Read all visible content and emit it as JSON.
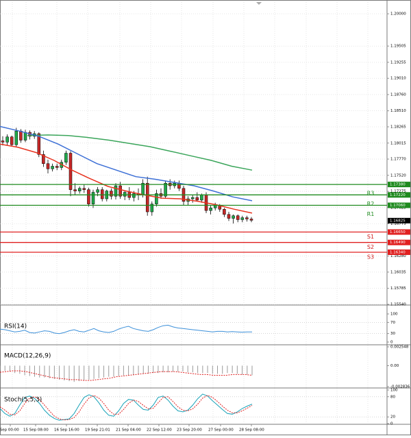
{
  "chart_data": [
    {
      "type": "candlestick",
      "price_axis": {
        "ticks": [
          "1.20000",
          "1.19505",
          "1.19255",
          "1.19010",
          "1.18760",
          "1.18510",
          "1.18265",
          "1.18015",
          "1.17770",
          "1.17520",
          "1.17275",
          "1.17025",
          "1.16775",
          "1.16280",
          "1.16035",
          "1.15785",
          "1.15540"
        ],
        "ylim": [
          1.1554,
          1.2018
        ]
      },
      "time_axis": {
        "labels": [
          "14 Sep 00:00",
          "15 Sep 08:00",
          "16 Sep 16:00",
          "19 Sep 21:01",
          "21 Sep 04:00",
          "22 Sep 12:00",
          "23 Sep 20:00",
          "27 Sep 00:00",
          "28 Sep 08:00"
        ]
      },
      "levels": [
        {
          "name": "R3",
          "value": 1.1738,
          "value_label": "1.17380",
          "color": "#1e8a1e"
        },
        {
          "name": "R2",
          "value": 1.1722,
          "value_label": "1.17220",
          "color": "#1e8a1e"
        },
        {
          "name": "R1",
          "value": 1.1706,
          "value_label": "1.17060",
          "color": "#1e8a1e"
        },
        {
          "name": "S1",
          "value": 1.1665,
          "value_label": "1.16650",
          "color": "#e02020"
        },
        {
          "name": "S2",
          "value": 1.1649,
          "value_label": "1.16490",
          "color": "#e02020"
        },
        {
          "name": "S3",
          "value": 1.1634,
          "value_label": "1.16340",
          "color": "#e02020"
        }
      ],
      "current_price": {
        "value": 1.16825,
        "label": "1.16825"
      },
      "candles": [
        [
          1.1805,
          1.1812,
          1.1798,
          1.1803
        ],
        [
          1.1803,
          1.1815,
          1.1798,
          1.1811
        ],
        [
          1.1811,
          1.1813,
          1.1796,
          1.1799
        ],
        [
          1.1799,
          1.1825,
          1.1796,
          1.182
        ],
        [
          1.182,
          1.1823,
          1.1802,
          1.1806
        ],
        [
          1.1806,
          1.1822,
          1.1803,
          1.1818
        ],
        [
          1.1818,
          1.1821,
          1.1807,
          1.1812
        ],
        [
          1.1812,
          1.182,
          1.1808,
          1.1816
        ],
        [
          1.1816,
          1.1818,
          1.178,
          1.1784
        ],
        [
          1.1784,
          1.179,
          1.1765,
          1.177
        ],
        [
          1.177,
          1.1776,
          1.1755,
          1.1762
        ],
        [
          1.1762,
          1.177,
          1.1758,
          1.1766
        ],
        [
          1.1766,
          1.177,
          1.176,
          1.1764
        ],
        [
          1.1764,
          1.1776,
          1.176,
          1.1772
        ],
        [
          1.1772,
          1.179,
          1.1768,
          1.1786
        ],
        [
          1.1786,
          1.1789,
          1.172,
          1.173
        ],
        [
          1.173,
          1.174,
          1.1722,
          1.1728
        ],
        [
          1.1728,
          1.1735,
          1.1724,
          1.1732
        ],
        [
          1.1732,
          1.1738,
          1.1725,
          1.173
        ],
        [
          1.173,
          1.1733,
          1.1704,
          1.1708
        ],
        [
          1.1708,
          1.173,
          1.1702,
          1.1726
        ],
        [
          1.1726,
          1.1734,
          1.172,
          1.173
        ],
        [
          1.173,
          1.1734,
          1.1712,
          1.1716
        ],
        [
          1.1716,
          1.173,
          1.1712,
          1.1728
        ],
        [
          1.1728,
          1.1732,
          1.1715,
          1.172
        ],
        [
          1.172,
          1.174,
          1.1715,
          1.1736
        ],
        [
          1.1736,
          1.1742,
          1.1716,
          1.172
        ],
        [
          1.172,
          1.1728,
          1.1714,
          1.1726
        ],
        [
          1.1726,
          1.1734,
          1.1714,
          1.1718
        ],
        [
          1.1718,
          1.1728,
          1.1712,
          1.1724
        ],
        [
          1.1724,
          1.1732,
          1.1714,
          1.1722
        ],
        [
          1.1722,
          1.1746,
          1.1718,
          1.174
        ],
        [
          1.174,
          1.175,
          1.169,
          1.1696
        ],
        [
          1.1696,
          1.1712,
          1.169,
          1.1708
        ],
        [
          1.1708,
          1.173,
          1.1704,
          1.1724
        ],
        [
          1.1724,
          1.1732,
          1.1716,
          1.172
        ],
        [
          1.172,
          1.1744,
          1.1716,
          1.174
        ],
        [
          1.174,
          1.1746,
          1.173,
          1.1736
        ],
        [
          1.1736,
          1.1744,
          1.1732,
          1.174
        ],
        [
          1.174,
          1.1744,
          1.1728,
          1.1732
        ],
        [
          1.1732,
          1.1736,
          1.1706,
          1.1712
        ],
        [
          1.1712,
          1.172,
          1.1706,
          1.1716
        ],
        [
          1.1716,
          1.1722,
          1.171,
          1.1718
        ],
        [
          1.1718,
          1.1726,
          1.1712,
          1.1714
        ],
        [
          1.1714,
          1.1724,
          1.171,
          1.1722
        ],
        [
          1.1722,
          1.1726,
          1.1694,
          1.1698
        ],
        [
          1.1698,
          1.1706,
          1.1692,
          1.1702
        ],
        [
          1.1702,
          1.171,
          1.1698,
          1.1706
        ],
        [
          1.1706,
          1.1708,
          1.1696,
          1.17
        ],
        [
          1.17,
          1.1702,
          1.1688,
          1.1692
        ],
        [
          1.1692,
          1.1696,
          1.1682,
          1.1686
        ],
        [
          1.1686,
          1.1692,
          1.1678,
          1.169
        ],
        [
          1.169,
          1.1692,
          1.168,
          1.1684
        ],
        [
          1.1684,
          1.169,
          1.168,
          1.1687
        ],
        [
          1.1687,
          1.169,
          1.1681,
          1.1685
        ],
        [
          1.1685,
          1.1688,
          1.168,
          1.1683
        ]
      ],
      "ma_fast": [
        1.18,
        1.1795,
        1.1787,
        1.1775,
        1.176,
        1.1747,
        1.1735,
        1.1728,
        1.1722,
        1.1717,
        1.1716,
        1.1712,
        1.1707,
        1.17,
        1.1694
      ],
      "ma_medium": [
        1.1827,
        1.182,
        1.1812,
        1.18,
        1.1785,
        1.177,
        1.176,
        1.175,
        1.1746,
        1.1741,
        1.1736,
        1.1728,
        1.1719,
        1.1713
      ],
      "ma_slow": [
        1.1813,
        1.1814,
        1.1813,
        1.181,
        1.1806,
        1.1801,
        1.1796,
        1.1789,
        1.1782,
        1.1775,
        1.1766,
        1.176
      ]
    },
    {
      "type": "line",
      "title": "RSI(14)",
      "y_ticks": [
        "100",
        "70",
        "30",
        "0"
      ],
      "ylim": [
        0,
        100
      ],
      "values": [
        46,
        44,
        40,
        36,
        38,
        42,
        34,
        32,
        36,
        40,
        38,
        32,
        30,
        34,
        40,
        44,
        38,
        36,
        42,
        48,
        40,
        36,
        34,
        38,
        46,
        52,
        56,
        48,
        44,
        40,
        38,
        44,
        52,
        58,
        60,
        54,
        50,
        48,
        46,
        44,
        42,
        40,
        38,
        36,
        38,
        38,
        36,
        37,
        36,
        35,
        36,
        36
      ]
    },
    {
      "type": "bar",
      "title": "MACD(12,26,9)",
      "y_ticks": [
        "0.002548",
        "0.00",
        "-0.002836"
      ],
      "ylim": [
        -0.002836,
        0.002548
      ],
      "histogram": [
        -0.0006,
        -0.0007,
        -0.0008,
        -0.001,
        -0.0011,
        -0.0013,
        -0.0014,
        -0.0015,
        -0.0016,
        -0.0016,
        -0.0017,
        -0.0018,
        -0.0019,
        -0.002,
        -0.0021,
        -0.0022,
        -0.0021,
        -0.002,
        -0.0019,
        -0.0018,
        -0.0017,
        -0.0016,
        -0.0015,
        -0.0015,
        -0.0014,
        -0.0013,
        -0.0013,
        -0.0012,
        -0.0012,
        -0.0011,
        -0.0011,
        -0.001,
        -0.001,
        -0.0009,
        -0.0009,
        -0.0008,
        -0.0008,
        -0.0008,
        -0.0009,
        -0.0009,
        -0.001,
        -0.001,
        -0.001,
        -0.0011,
        -0.0011,
        -0.0011,
        -0.001,
        -0.001,
        -0.0011,
        -0.0012,
        -0.0012,
        -0.0013
      ],
      "signal": [
        -0.0009,
        -0.0008,
        -0.0007,
        -0.0007,
        -0.0008,
        -0.001,
        -0.0012,
        -0.0014,
        -0.0016,
        -0.0017,
        -0.0018,
        -0.0019,
        -0.0019,
        -0.002,
        -0.002,
        -0.0019,
        -0.0018,
        -0.0017,
        -0.0015,
        -0.0014,
        -0.0013,
        -0.0012,
        -0.0011,
        -0.001,
        -0.0009,
        -0.0008,
        -0.0008,
        -0.0008,
        -0.0009,
        -0.001,
        -0.0011,
        -0.0012,
        -0.0012,
        -0.0013,
        -0.0013,
        -0.0013,
        -0.0012,
        -0.0012,
        -0.0012,
        -0.0013
      ]
    },
    {
      "type": "line",
      "title": "Stoch(5,5,3)",
      "y_ticks": [
        "100",
        "80",
        "20",
        "0"
      ],
      "ylim": [
        0,
        100
      ],
      "series": [
        {
          "values": [
            45,
            30,
            22,
            30,
            55,
            78,
            82,
            75,
            60,
            40,
            25,
            15,
            10,
            12,
            14,
            30,
            55,
            78,
            86,
            80,
            62,
            40,
            25,
            22,
            38,
            60,
            72,
            70,
            55,
            42,
            40,
            55,
            78,
            82,
            70,
            52,
            38,
            35,
            40,
            55,
            74,
            88,
            82,
            68,
            55,
            42,
            30,
            28,
            35,
            45,
            52,
            58
          ],
          "color": "#17a2b8"
        },
        {
          "values": [
            50,
            40,
            28,
            26,
            38,
            60,
            76,
            80,
            72,
            55,
            38,
            22,
            14,
            11,
            12,
            18,
            35,
            58,
            76,
            84,
            76,
            60,
            40,
            28,
            28,
            42,
            60,
            70,
            66,
            54,
            44,
            46,
            62,
            78,
            80,
            66,
            50,
            40,
            38,
            44,
            58,
            76,
            84,
            78,
            66,
            52,
            40,
            32,
            32,
            38,
            46,
            54
          ],
          "color": "#e02020"
        }
      ]
    }
  ]
}
